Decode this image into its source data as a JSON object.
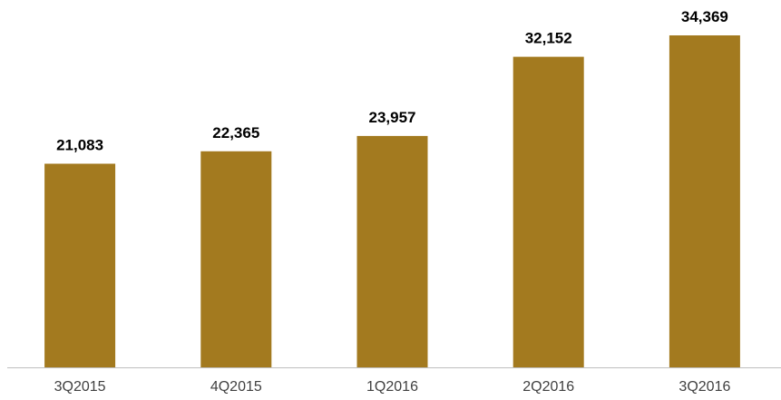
{
  "chart_data": {
    "type": "bar",
    "categories": [
      "3Q2015",
      "4Q2015",
      "1Q2016",
      "2Q2016",
      "3Q2016"
    ],
    "values": [
      21083,
      22365,
      23957,
      32152,
      34369
    ],
    "value_labels": [
      "21,083",
      "22,365",
      "23,957",
      "32,152",
      "34,369"
    ],
    "title": "",
    "xlabel": "",
    "ylabel": "",
    "ylim": [
      0,
      34369
    ],
    "grid": false,
    "legend": "none",
    "colors": {
      "bar": "#A37A1F",
      "axis": "#BFBFBF",
      "value_text": "#000000",
      "tick_text": "#404040"
    }
  }
}
